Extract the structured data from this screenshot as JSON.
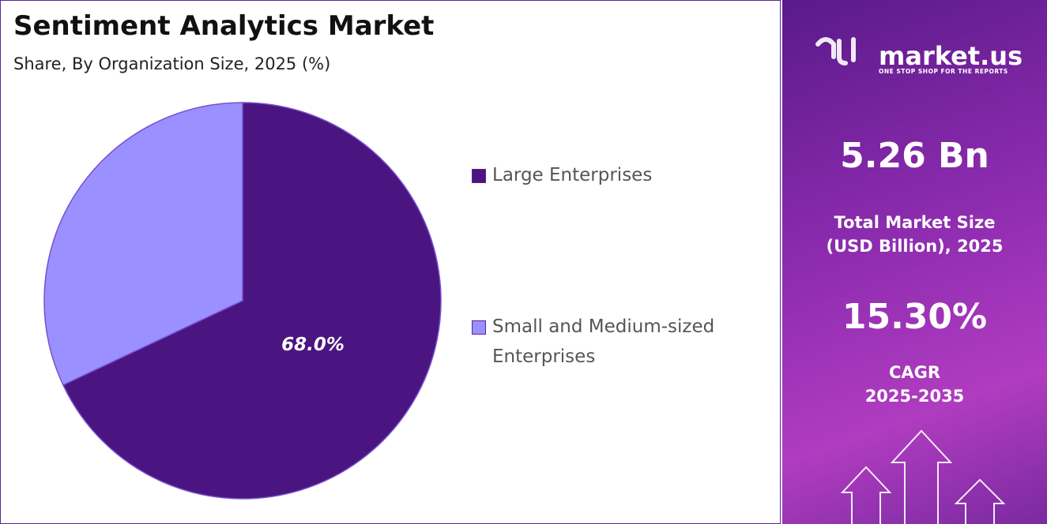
{
  "chart_data": {
    "type": "pie",
    "title": "Sentiment Analytics Market",
    "subtitle": "Share, By Organization Size, 2025 (%)",
    "categories": [
      "Large Enterprises",
      "Small and Medium-sized Enterprises"
    ],
    "values": [
      68.0,
      32.0
    ],
    "value_labels": [
      "68.0%",
      null
    ],
    "colors": [
      "#4a1580",
      "#9a90ff"
    ]
  },
  "panel": {
    "logo": "market.us",
    "tagline": "ONE STOP SHOP FOR THE REPORTS",
    "market_size": "5.26 Bn",
    "market_size_label": [
      "Total Market Size",
      "(USD Billion), 2025"
    ],
    "cagr": "15.30%",
    "cagr_label": [
      "CAGR",
      "2025-2035"
    ]
  }
}
